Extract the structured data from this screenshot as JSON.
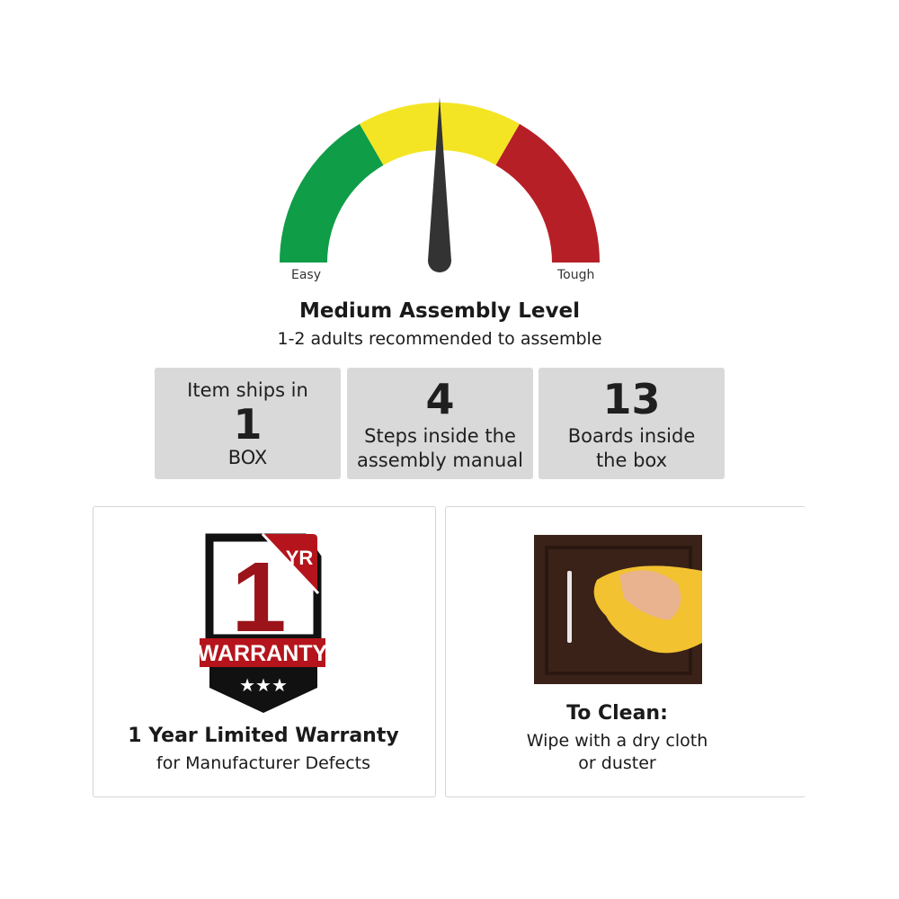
{
  "gauge": {
    "label_min": "Easy",
    "label_max": "Tough",
    "level_fraction": 0.5,
    "segments": [
      {
        "name": "easy",
        "color": "#0f9d48"
      },
      {
        "name": "medium",
        "color": "#f4e524"
      },
      {
        "name": "tough",
        "color": "#b71f27"
      }
    ],
    "needle_color": "#333333"
  },
  "assembly": {
    "title": "Medium Assembly Level",
    "subtitle": "1-2 adults recommended to assemble"
  },
  "stats": [
    {
      "top": "Item ships in",
      "big": "1",
      "bottom": "BOX"
    },
    {
      "big": "4",
      "line1": "Steps inside the",
      "line2": "assembly manual"
    },
    {
      "big": "13",
      "line1": "Boards inside",
      "line2": "the box"
    }
  ],
  "warranty": {
    "badge_number": "1",
    "badge_unit": "YR",
    "badge_text": "WARRANTY",
    "title": "1 Year Limited Warranty",
    "subtitle": "for Manufacturer Defects"
  },
  "clean": {
    "title": "To Clean:",
    "line1": "Wipe with a dry cloth",
    "line2": "or duster"
  }
}
